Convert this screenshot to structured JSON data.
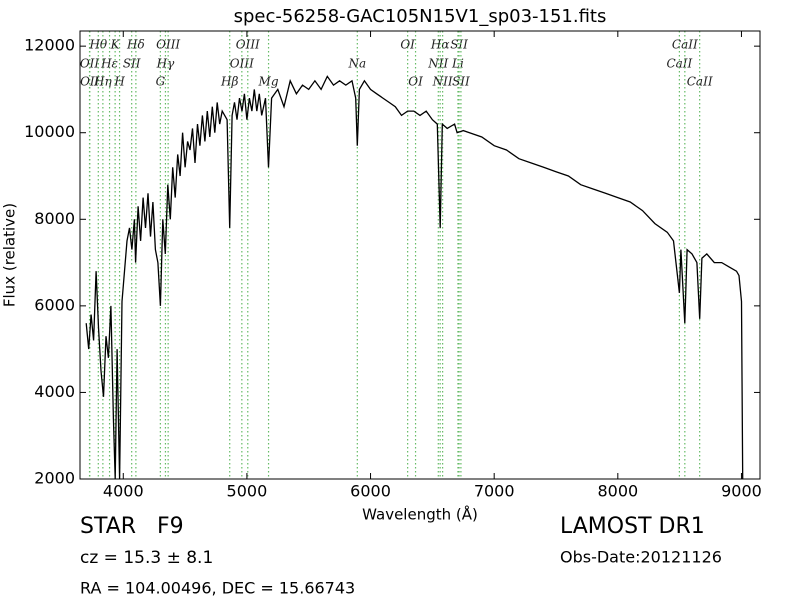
{
  "chart_data": {
    "type": "line",
    "title": "spec-56258-GAC105N15V1_sp03-151.fits",
    "xlabel": "Wavelength (Å)",
    "ylabel": "Flux (relative)",
    "xlim": [
      3650,
      9150
    ],
    "ylim": [
      2000,
      12350
    ],
    "xticks": [
      4000,
      5000,
      6000,
      7000,
      8000,
      9000
    ],
    "yticks": [
      2000,
      4000,
      6000,
      8000,
      10000,
      12000
    ],
    "grid": false,
    "x": [
      3700,
      3720,
      3740,
      3760,
      3780,
      3800,
      3820,
      3840,
      3860,
      3880,
      3900,
      3920,
      3935,
      3950,
      3970,
      3990,
      4010,
      4030,
      4050,
      4070,
      4090,
      4100,
      4120,
      4140,
      4160,
      4180,
      4200,
      4220,
      4240,
      4260,
      4280,
      4300,
      4320,
      4340,
      4360,
      4380,
      4400,
      4420,
      4440,
      4460,
      4480,
      4500,
      4520,
      4540,
      4560,
      4580,
      4600,
      4620,
      4640,
      4660,
      4680,
      4700,
      4720,
      4740,
      4760,
      4780,
      4800,
      4840,
      4861,
      4880,
      4900,
      4920,
      4940,
      4960,
      4980,
      5000,
      5020,
      5040,
      5060,
      5080,
      5100,
      5120,
      5150,
      5175,
      5200,
      5250,
      5300,
      5350,
      5400,
      5450,
      5500,
      5550,
      5600,
      5650,
      5700,
      5750,
      5800,
      5850,
      5880,
      5893,
      5910,
      5950,
      6000,
      6050,
      6100,
      6150,
      6200,
      6250,
      6300,
      6350,
      6400,
      6450,
      6500,
      6540,
      6563,
      6580,
      6620,
      6680,
      6700,
      6750,
      6800,
      6900,
      7000,
      7100,
      7200,
      7300,
      7400,
      7500,
      7600,
      7700,
      7800,
      7900,
      8000,
      8100,
      8200,
      8300,
      8400,
      8450,
      8498,
      8510,
      8542,
      8560,
      8600,
      8640,
      8662,
      8680,
      8720,
      8780,
      8840,
      8900,
      8960,
      8980,
      9000,
      9010
    ],
    "series": [
      {
        "color": "#000000",
        "values": [
          5600,
          5000,
          5800,
          5200,
          6800,
          5500,
          4500,
          3900,
          5300,
          4800,
          6000,
          3400,
          2000,
          5000,
          2000,
          6100,
          6800,
          7500,
          7800,
          7300,
          8000,
          7000,
          8300,
          7500,
          8500,
          7800,
          8600,
          7600,
          8400,
          7300,
          7000,
          6000,
          8000,
          7200,
          8800,
          8000,
          9200,
          8500,
          9500,
          9000,
          10000,
          9200,
          9800,
          9600,
          10100,
          9300,
          10200,
          9700,
          10400,
          9800,
          10500,
          9900,
          10600,
          10000,
          10700,
          10200,
          10500,
          10300,
          7800,
          10400,
          10700,
          10300,
          10800,
          10500,
          10900,
          10300,
          10800,
          10500,
          11000,
          10500,
          10900,
          10400,
          10800,
          9200,
          10800,
          11000,
          10600,
          11200,
          10900,
          11100,
          11000,
          11200,
          11000,
          11300,
          11100,
          11200,
          11100,
          11200,
          10800,
          9700,
          11000,
          11200,
          11000,
          10900,
          10800,
          10700,
          10600,
          10400,
          10500,
          10500,
          10400,
          10500,
          10300,
          10200,
          7800,
          10200,
          10100,
          10200,
          10000,
          10050,
          10000,
          9900,
          9700,
          9600,
          9400,
          9300,
          9200,
          9100,
          9000,
          8800,
          8700,
          8600,
          8500,
          8400,
          8200,
          7900,
          7700,
          7500,
          6300,
          7300,
          5600,
          7300,
          7200,
          7000,
          5700,
          7100,
          7200,
          7000,
          7000,
          6900,
          6800,
          6700,
          6100,
          2000
        ]
      }
    ],
    "marker_color": "#66bb66",
    "lines": [
      {
        "label": "OII",
        "x": 3727
      },
      {
        "label": "OII",
        "x": 3729
      },
      {
        "label": "Hθ",
        "x": 3798
      },
      {
        "label": "Hη",
        "x": 3835
      },
      {
        "label": "Hε",
        "x": 3889
      },
      {
        "label": "K",
        "x": 3934
      },
      {
        "label": "H",
        "x": 3970
      },
      {
        "label": "SII",
        "x": 4068
      },
      {
        "label": "Hδ",
        "x": 4102
      },
      {
        "label": "G",
        "x": 4300
      },
      {
        "label": "Hγ",
        "x": 4341
      },
      {
        "label": "OIII",
        "x": 4363
      },
      {
        "label": "Hβ",
        "x": 4861
      },
      {
        "label": "OIII",
        "x": 4959
      },
      {
        "label": "OIII",
        "x": 5007
      },
      {
        "label": "Mg",
        "x": 5175
      },
      {
        "label": "Na",
        "x": 5893
      },
      {
        "label": "OI",
        "x": 6300
      },
      {
        "label": "OI",
        "x": 6364
      },
      {
        "label": "NII",
        "x": 6548
      },
      {
        "label": "Hα",
        "x": 6563
      },
      {
        "label": "NII",
        "x": 6583
      },
      {
        "label": "Li",
        "x": 6707
      },
      {
        "label": "SII",
        "x": 6716
      },
      {
        "label": "SII",
        "x": 6731
      },
      {
        "label": "CaII",
        "x": 8498
      },
      {
        "label": "CaII",
        "x": 8542
      },
      {
        "label": "CaII",
        "x": 8662
      }
    ],
    "info": {
      "class": "STAR",
      "subclass": "F9",
      "cz": "cz = 15.3 ± 8.1",
      "coords": "RA = 104.00496, DEC = 15.66743",
      "survey": "LAMOST DR1",
      "obsdate": "Obs-Date:20121126"
    }
  }
}
